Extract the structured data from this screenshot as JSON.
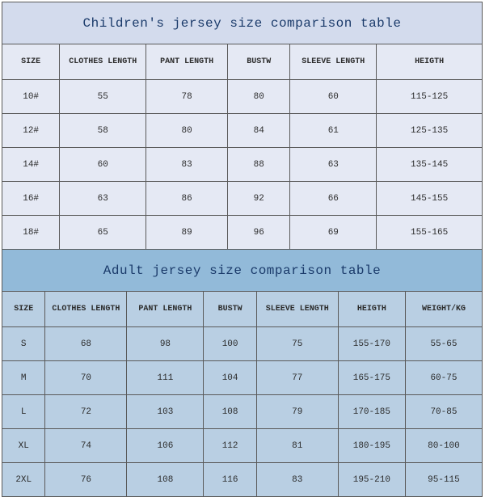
{
  "children_table": {
    "title": "Children's jersey size comparison table",
    "title_bg": "#d3dbed",
    "cell_bg": "#e5e9f4",
    "border_color": "#5a5a5a",
    "title_color": "#1a3a6a",
    "text_color": "#2c2c2c",
    "title_fontsize": 16,
    "header_fontsize": 10,
    "cell_fontsize": 11,
    "columns": [
      "SIZE",
      "CLOTHES LENGTH",
      "PANT LENGTH",
      "BUSTW",
      "SLEEVE LENGTH",
      "HEIGTH"
    ],
    "col_widths_pct": [
      12,
      18,
      17,
      13,
      18,
      22
    ],
    "rows": [
      [
        "10#",
        "55",
        "78",
        "80",
        "60",
        "115-125"
      ],
      [
        "12#",
        "58",
        "80",
        "84",
        "61",
        "125-135"
      ],
      [
        "14#",
        "60",
        "83",
        "88",
        "63",
        "135-145"
      ],
      [
        "16#",
        "63",
        "86",
        "92",
        "66",
        "145-155"
      ],
      [
        "18#",
        "65",
        "89",
        "96",
        "69",
        "155-165"
      ]
    ]
  },
  "adult_table": {
    "title": "Adult jersey size comparison table",
    "title_bg": "#92bad9",
    "cell_bg": "#b9cfe3",
    "border_color": "#5a5a5a",
    "title_color": "#1a3a6a",
    "text_color": "#2c2c2c",
    "title_fontsize": 16,
    "header_fontsize": 10,
    "cell_fontsize": 11,
    "columns": [
      "SIZE",
      "CLOTHES LENGTH",
      "PANT LENGTH",
      "BUSTW",
      "SLEEVE LENGTH",
      "HEIGTH",
      "WEIGHT/KG"
    ],
    "col_widths_pct": [
      9,
      17,
      16,
      11,
      17,
      14,
      16
    ],
    "rows": [
      [
        "S",
        "68",
        "98",
        "100",
        "75",
        "155-170",
        "55-65"
      ],
      [
        "M",
        "70",
        "111",
        "104",
        "77",
        "165-175",
        "60-75"
      ],
      [
        "L",
        "72",
        "103",
        "108",
        "79",
        "170-185",
        "70-85"
      ],
      [
        "XL",
        "74",
        "106",
        "112",
        "81",
        "180-195",
        "80-100"
      ],
      [
        "2XL",
        "76",
        "108",
        "116",
        "83",
        "195-210",
        "95-115"
      ]
    ]
  }
}
